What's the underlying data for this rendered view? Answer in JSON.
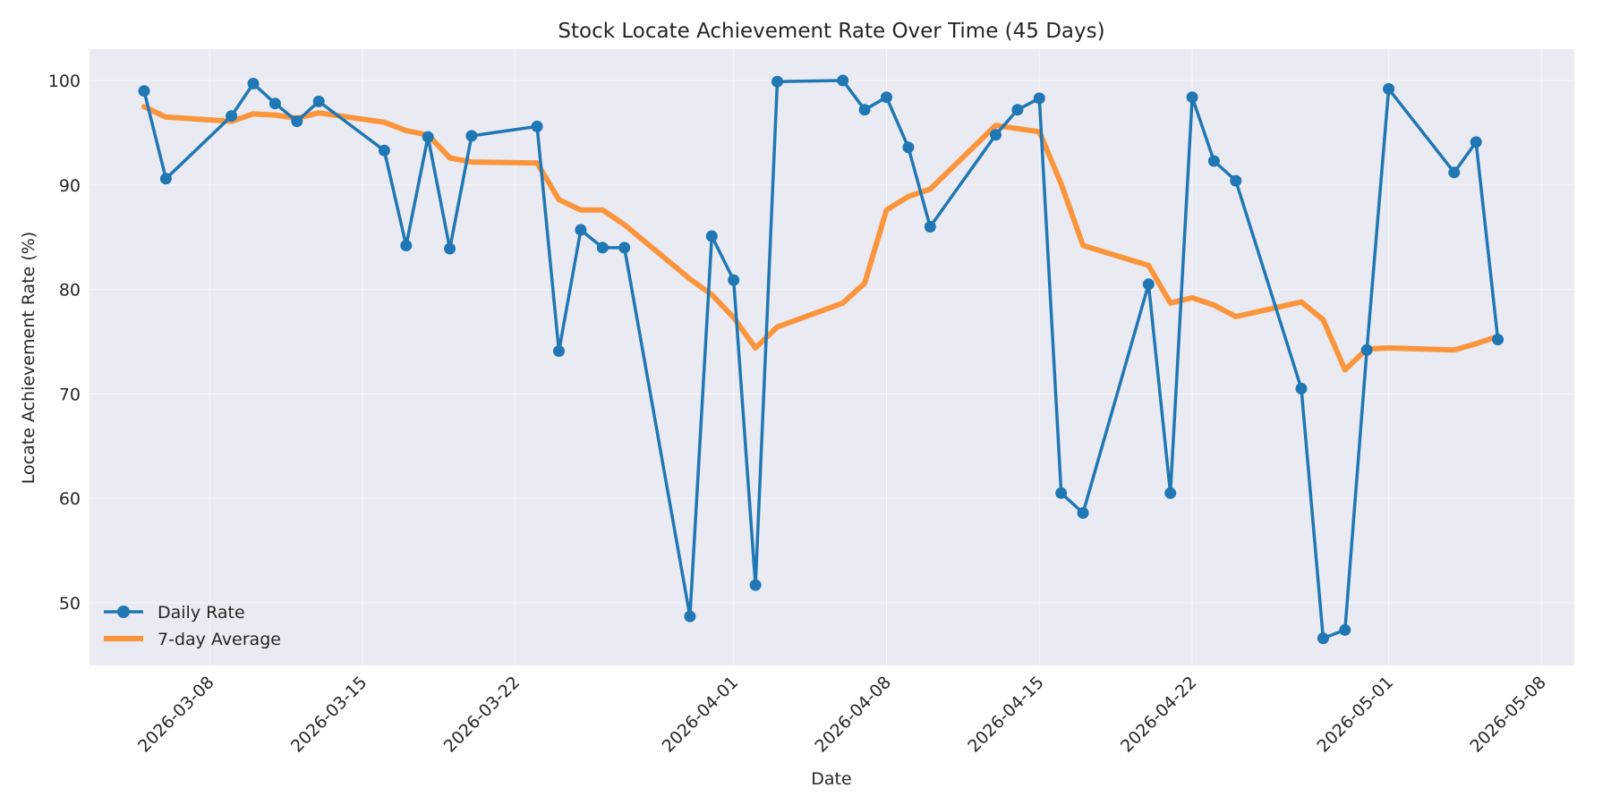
{
  "chart_data": {
    "type": "line",
    "title": "Stock Locate Achievement Rate Over Time (45 Days)",
    "xlabel": "Date",
    "ylabel": "Locate Achievement Rate (%)",
    "xlim": [
      "2026-03-02T12:00",
      "2026-05-09T12:00"
    ],
    "ylim": [
      44,
      103
    ],
    "x_ticks": [
      "2026-03-08",
      "2026-03-15",
      "2026-03-22",
      "2026-04-01",
      "2026-04-08",
      "2026-04-15",
      "2026-04-22",
      "2026-05-01",
      "2026-05-08"
    ],
    "y_ticks": [
      50,
      60,
      70,
      80,
      90,
      100
    ],
    "grid": true,
    "legend_position": "lower-left",
    "colors": {
      "daily": "#1f77b4",
      "avg": "#ff7f0e",
      "background": "#eaeaf2"
    },
    "series": [
      {
        "name": "Daily Rate",
        "style": "line-marker",
        "points": [
          [
            "2026-03-05",
            99.0
          ],
          [
            "2026-03-06",
            90.6
          ],
          [
            "2026-03-09",
            96.6
          ],
          [
            "2026-03-10",
            99.7
          ],
          [
            "2026-03-11",
            97.8
          ],
          [
            "2026-03-12",
            96.1
          ],
          [
            "2026-03-13",
            98.0
          ],
          [
            "2026-03-16",
            93.3
          ],
          [
            "2026-03-17",
            84.2
          ],
          [
            "2026-03-18",
            94.6
          ],
          [
            "2026-03-19",
            83.9
          ],
          [
            "2026-03-20",
            94.7
          ],
          [
            "2026-03-23",
            95.6
          ],
          [
            "2026-03-24",
            74.1
          ],
          [
            "2026-03-25",
            85.7
          ],
          [
            "2026-03-26",
            84.0
          ],
          [
            "2026-03-27",
            84.0
          ],
          [
            "2026-03-30",
            48.7
          ],
          [
            "2026-03-31",
            85.1
          ],
          [
            "2026-04-01",
            80.9
          ],
          [
            "2026-04-02",
            51.7
          ],
          [
            "2026-04-03",
            99.9
          ],
          [
            "2026-04-06",
            100.0
          ],
          [
            "2026-04-07",
            97.2
          ],
          [
            "2026-04-08",
            98.4
          ],
          [
            "2026-04-09",
            93.6
          ],
          [
            "2026-04-10",
            86.0
          ],
          [
            "2026-04-13",
            94.8
          ],
          [
            "2026-04-14",
            97.2
          ],
          [
            "2026-04-15",
            98.3
          ],
          [
            "2026-04-16",
            60.5
          ],
          [
            "2026-04-17",
            58.6
          ],
          [
            "2026-04-20",
            80.5
          ],
          [
            "2026-04-21",
            60.5
          ],
          [
            "2026-04-22",
            98.4
          ],
          [
            "2026-04-23",
            92.3
          ],
          [
            "2026-04-24",
            90.4
          ],
          [
            "2026-04-27",
            70.5
          ],
          [
            "2026-04-28",
            46.6
          ],
          [
            "2026-04-29",
            47.4
          ],
          [
            "2026-04-30",
            74.2
          ],
          [
            "2026-05-01",
            99.2
          ],
          [
            "2026-05-04",
            91.2
          ],
          [
            "2026-05-05",
            94.1
          ],
          [
            "2026-05-06",
            75.2
          ]
        ]
      },
      {
        "name": "7-day Average",
        "style": "line",
        "points": [
          [
            "2026-03-05",
            97.5
          ],
          [
            "2026-03-06",
            96.5
          ],
          [
            "2026-03-09",
            96.1
          ],
          [
            "2026-03-10",
            96.8
          ],
          [
            "2026-03-11",
            96.7
          ],
          [
            "2026-03-12",
            96.4
          ],
          [
            "2026-03-13",
            96.9
          ],
          [
            "2026-03-16",
            96.0
          ],
          [
            "2026-03-17",
            95.2
          ],
          [
            "2026-03-18",
            94.8
          ],
          [
            "2026-03-19",
            92.6
          ],
          [
            "2026-03-20",
            92.2
          ],
          [
            "2026-03-23",
            92.1
          ],
          [
            "2026-03-24",
            88.6
          ],
          [
            "2026-03-25",
            87.6
          ],
          [
            "2026-03-26",
            87.6
          ],
          [
            "2026-03-27",
            86.2
          ],
          [
            "2026-03-30",
            81.0
          ],
          [
            "2026-03-31",
            79.5
          ],
          [
            "2026-04-01",
            77.3
          ],
          [
            "2026-04-02",
            74.4
          ],
          [
            "2026-04-03",
            76.4
          ],
          [
            "2026-04-06",
            78.7
          ],
          [
            "2026-04-07",
            80.6
          ],
          [
            "2026-04-08",
            87.6
          ],
          [
            "2026-04-09",
            88.9
          ],
          [
            "2026-04-10",
            89.6
          ],
          [
            "2026-04-13",
            95.7
          ],
          [
            "2026-04-14",
            95.4
          ],
          [
            "2026-04-15",
            95.1
          ],
          [
            "2026-04-16",
            90.1
          ],
          [
            "2026-04-17",
            84.2
          ],
          [
            "2026-04-20",
            82.3
          ],
          [
            "2026-04-21",
            78.7
          ],
          [
            "2026-04-22",
            79.2
          ],
          [
            "2026-04-23",
            78.5
          ],
          [
            "2026-04-24",
            77.4
          ],
          [
            "2026-04-27",
            78.8
          ],
          [
            "2026-04-28",
            77.1
          ],
          [
            "2026-04-29",
            72.3
          ],
          [
            "2026-04-30",
            74.3
          ],
          [
            "2026-05-01",
            74.4
          ],
          [
            "2026-05-04",
            74.2
          ],
          [
            "2026-05-05",
            74.8
          ],
          [
            "2026-05-06",
            75.5
          ]
        ]
      }
    ]
  }
}
